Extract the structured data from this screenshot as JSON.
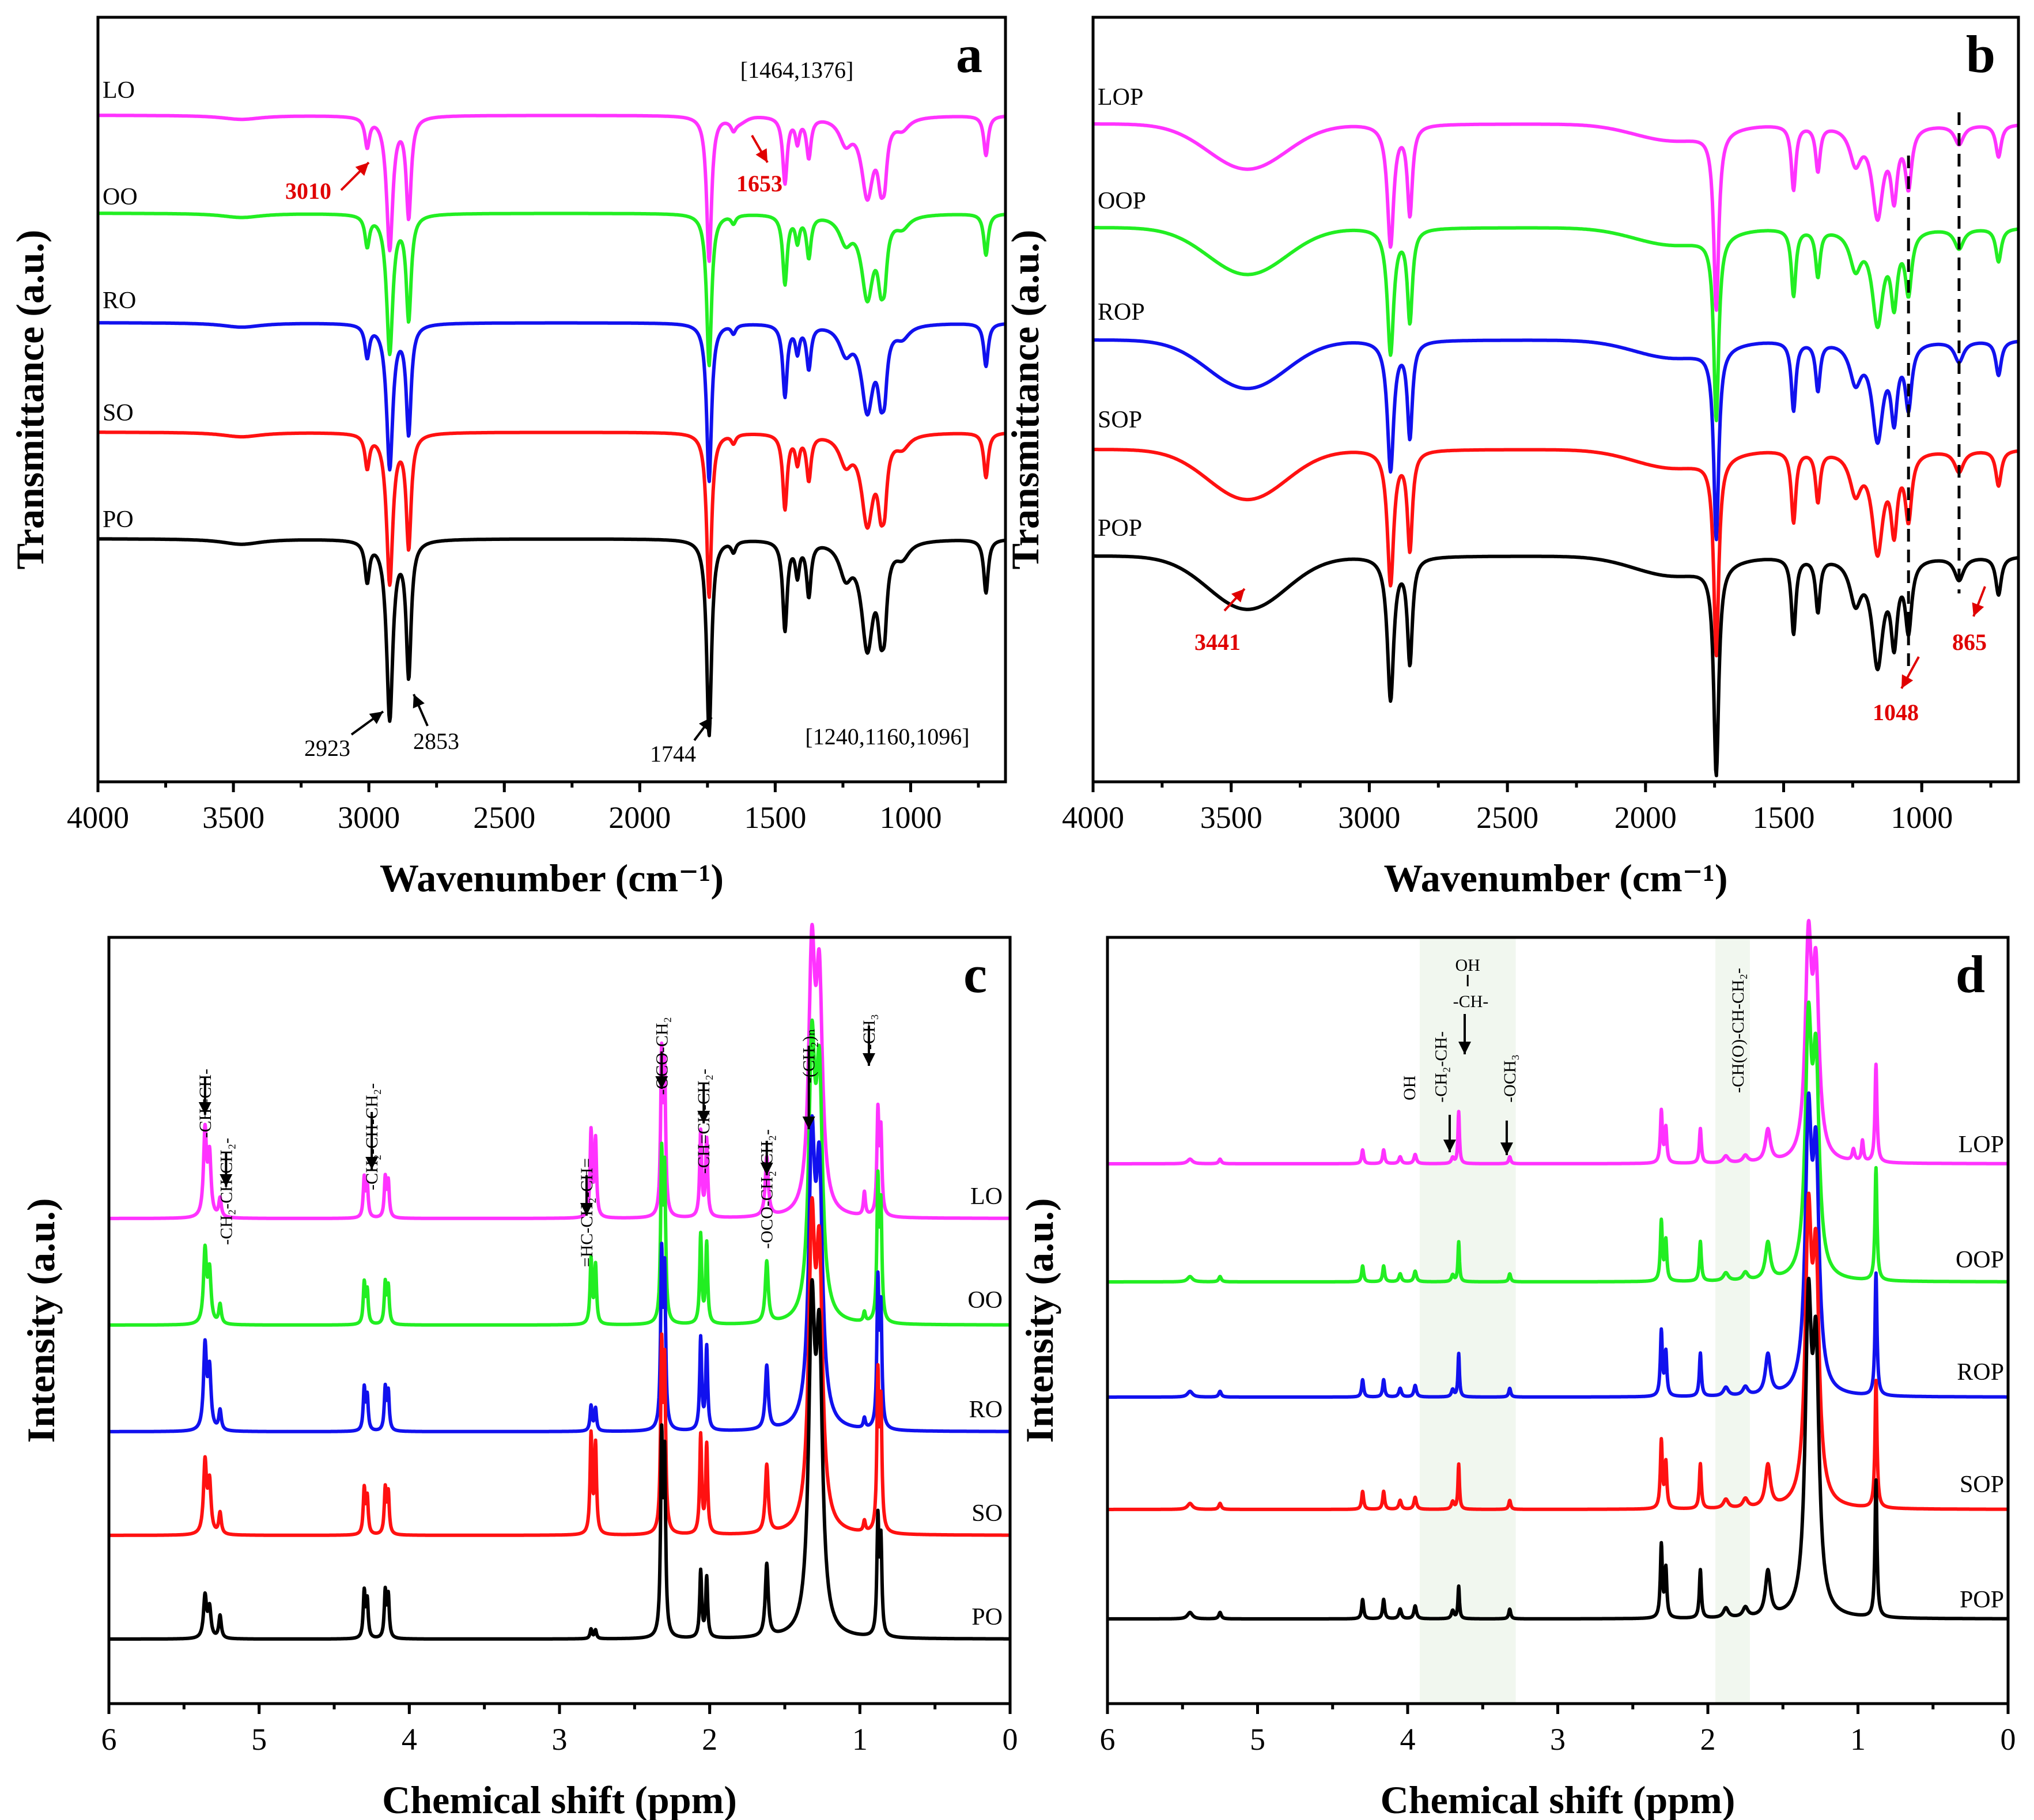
{
  "chart_data": [
    {
      "panel": "a",
      "type": "line",
      "xlabel": "Wavenumber (cm⁻¹)",
      "ylabel": "Transmittance (a.u.)",
      "xlim": [
        4000,
        650
      ],
      "xticks": [
        4000,
        3500,
        3000,
        2500,
        2000,
        1500,
        1000
      ],
      "series": [
        {
          "name": "LO",
          "color": "#ff33ff"
        },
        {
          "name": "OO",
          "color": "#22ee22"
        },
        {
          "name": "RO",
          "color": "#1111ee"
        },
        {
          "name": "SO",
          "color": "#ff1111"
        },
        {
          "name": "PO",
          "color": "#000000"
        }
      ],
      "annotations": {
        "black": [
          "2923",
          "2853",
          "1744",
          "[1464,1376]",
          "[1240,1160,1096]"
        ],
        "red": [
          "3010",
          "1653"
        ]
      }
    },
    {
      "panel": "b",
      "type": "line",
      "xlabel": "Wavenumber (cm⁻¹)",
      "ylabel": "Transmittance (a.u.)",
      "xlim": [
        4000,
        650
      ],
      "xticks": [
        4000,
        3500,
        3000,
        2500,
        2000,
        1500,
        1000
      ],
      "series": [
        {
          "name": "LOP",
          "color": "#ff33ff"
        },
        {
          "name": "OOP",
          "color": "#22ee22"
        },
        {
          "name": "ROP",
          "color": "#1111ee"
        },
        {
          "name": "SOP",
          "color": "#ff1111"
        },
        {
          "name": "POP",
          "color": "#000000"
        }
      ],
      "annotations": {
        "red": [
          "3441",
          "1048",
          "865"
        ]
      }
    },
    {
      "panel": "c",
      "type": "line",
      "xlabel": "Chemical shift (ppm)",
      "ylabel": "Intensity (a.u.)",
      "xlim": [
        6,
        0
      ],
      "xticks": [
        6,
        5,
        4,
        3,
        2,
        1,
        0
      ],
      "series": [
        {
          "name": "LO",
          "color": "#ff33ff"
        },
        {
          "name": "OO",
          "color": "#22ee22"
        },
        {
          "name": "RO",
          "color": "#1111ee"
        },
        {
          "name": "SO",
          "color": "#ff1111"
        },
        {
          "name": "PO",
          "color": "#000000"
        }
      ],
      "peak_labels": [
        "-CH=CH-",
        "-CH₂-CH-CH₂-",
        "-CH₂-CH-CH₂-",
        "=HC-CH₂-CH=",
        "-OCO-CH₂",
        "-CH=CH-CH₂-",
        "-OCO-CH₂-CH₂-",
        "-(CH₂)ₙ",
        "-CH₃"
      ]
    },
    {
      "panel": "d",
      "type": "line",
      "xlabel": "Chemical shift (ppm)",
      "ylabel": "Intensity (a.u.)",
      "xlim": [
        6,
        0
      ],
      "xticks": [
        6,
        5,
        4,
        3,
        2,
        1,
        0
      ],
      "series": [
        {
          "name": "LOP",
          "color": "#ff33ff"
        },
        {
          "name": "OOP",
          "color": "#22ee22"
        },
        {
          "name": "ROP",
          "color": "#1111ee"
        },
        {
          "name": "SOP",
          "color": "#ff1111"
        },
        {
          "name": "POP",
          "color": "#000000"
        }
      ],
      "peak_labels": [
        "OH",
        "-CH-",
        "OH",
        "-CH₂-CH-",
        "-OCH₃",
        "-CH(O)-CH-CH₂-"
      ]
    }
  ]
}
